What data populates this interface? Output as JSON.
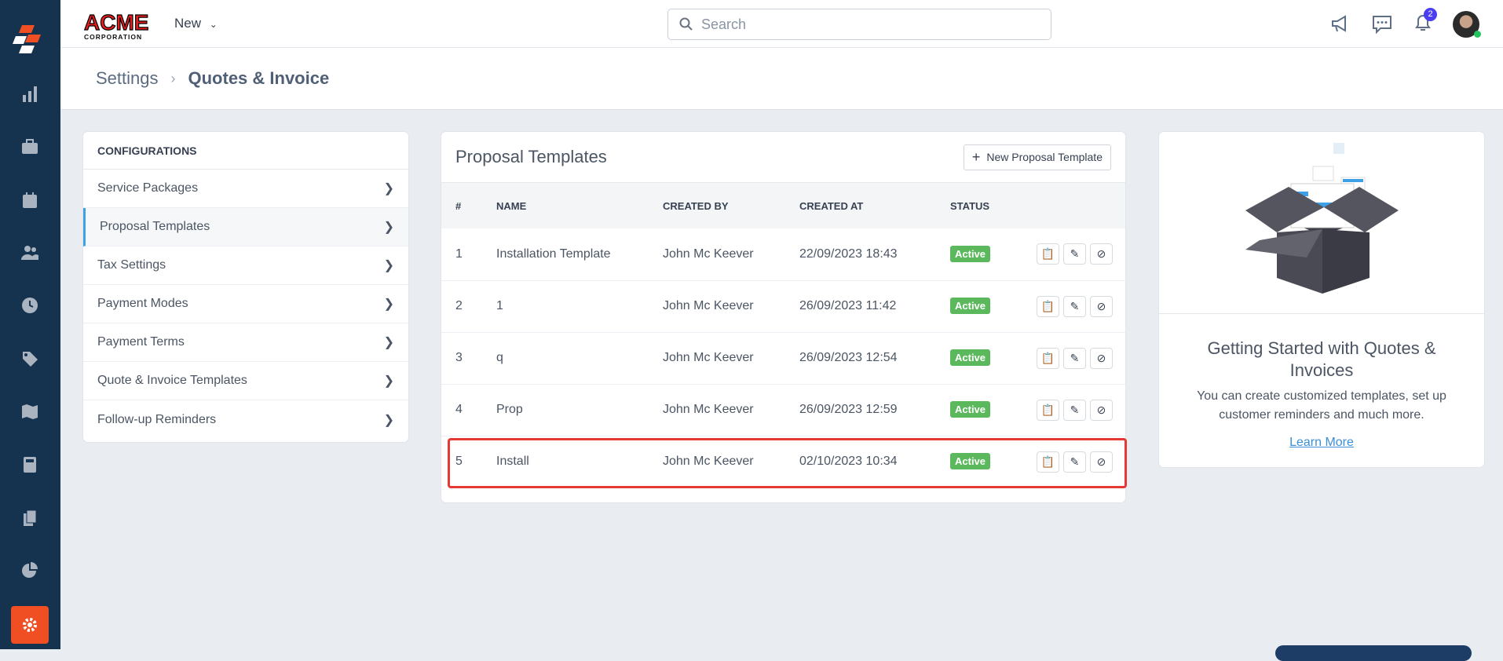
{
  "header": {
    "logo_text": "ACME CORPORATION",
    "new_label": "New",
    "search_placeholder": "Search",
    "notification_count": "2"
  },
  "sidebar": {
    "items": [
      "dashboard",
      "reports",
      "jobs",
      "calendar",
      "customers",
      "timesheets",
      "pricebook",
      "map",
      "estimates",
      "documents",
      "analytics",
      "settings"
    ],
    "active": "settings",
    "accent": "#f04e23"
  },
  "breadcrumb": {
    "parent": "Settings",
    "current": "Quotes & Invoice"
  },
  "configurations": {
    "title": "CONFIGURATIONS",
    "items": [
      {
        "label": "Service Packages"
      },
      {
        "label": "Proposal Templates",
        "selected": true
      },
      {
        "label": "Tax Settings"
      },
      {
        "label": "Payment Modes"
      },
      {
        "label": "Payment Terms"
      },
      {
        "label": "Quote & Invoice Templates"
      },
      {
        "label": "Follow-up Reminders"
      }
    ]
  },
  "proposal": {
    "title": "Proposal Templates",
    "new_button": "New Proposal Template",
    "columns": [
      "#",
      "NAME",
      "CREATED BY",
      "CREATED AT",
      "STATUS"
    ],
    "rows": [
      {
        "n": "1",
        "name": "Installation Template",
        "by": "John Mc Keever",
        "at": "22/09/2023 18:43",
        "status": "Active"
      },
      {
        "n": "2",
        "name": "1",
        "by": "John Mc Keever",
        "at": "26/09/2023 11:42",
        "status": "Active"
      },
      {
        "n": "3",
        "name": "q",
        "by": "John Mc Keever",
        "at": "26/09/2023 12:54",
        "status": "Active"
      },
      {
        "n": "4",
        "name": "Prop",
        "by": "John Mc Keever",
        "at": "26/09/2023 12:59",
        "status": "Active"
      },
      {
        "n": "5",
        "name": "Install",
        "by": "John Mc Keever",
        "at": "02/10/2023 10:34",
        "status": "Active",
        "highlighted": true
      }
    ]
  },
  "getting_started": {
    "title": "Getting Started with Quotes & Invoices",
    "text": "You can create customized templates, set up customer reminders and much more.",
    "link": "Learn More"
  }
}
